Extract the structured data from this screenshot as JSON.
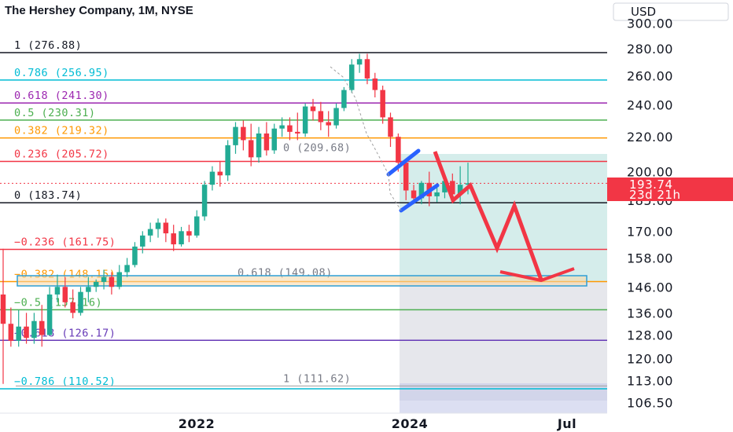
{
  "header": {
    "title": "The Hershey Company, 1M, NYSE",
    "currency": "USD"
  },
  "colors": {
    "up": "#22ab94",
    "down": "#f23645",
    "projection": "#f23645",
    "channel": "#2962ff",
    "target_zone": "#2e9fd6",
    "tp_zone": "#b2dfdb",
    "sl_zone": "#d1d4dc"
  },
  "price_badge": {
    "price": "193.74",
    "countdown": "23d 21h"
  },
  "chart_data": {
    "type": "candlestick",
    "title": "The Hershey Company, 1M, NYSE",
    "y_axis": {
      "scale": "log",
      "ticks": [
        "300.00",
        "280.00",
        "260.00",
        "240.00",
        "220.00",
        "200.00",
        "185.00",
        "170.00",
        "158.00",
        "146.00",
        "136.00",
        "128.00",
        "120.00",
        "113.00",
        "106.50"
      ]
    },
    "x_axis": {
      "ticks": [
        "2022",
        "2024",
        "Jul"
      ]
    },
    "fib_levels_upper": [
      {
        "label": "1 (276.88)",
        "price": 276.88,
        "color": "#131722"
      },
      {
        "label": "0.786 (256.95)",
        "price": 256.95,
        "color": "#00bcd4"
      },
      {
        "label": "0.618 (241.30)",
        "price": 241.3,
        "color": "#9c27b0"
      },
      {
        "label": "0.5 (230.31)",
        "price": 230.31,
        "color": "#4caf50"
      },
      {
        "label": "0.382 (219.32)",
        "price": 219.32,
        "color": "#ff9800"
      },
      {
        "label": "0.236 (205.72)",
        "price": 205.72,
        "color": "#f23645"
      },
      {
        "label": "0 (183.74)",
        "price": 183.74,
        "color": "#131722"
      },
      {
        "label": "−0.236 (161.75)",
        "price": 161.75,
        "color": "#f23645"
      },
      {
        "label": "−0.382 (148.15)",
        "price": 148.15,
        "color": "#ff9800"
      },
      {
        "label": "−0.5 (137.16)",
        "price": 137.16,
        "color": "#4caf50"
      },
      {
        "label": "−0.618 (126.17)",
        "price": 126.17,
        "color": "#673ab7"
      },
      {
        "label": "−0.786 (110.52)",
        "price": 110.52,
        "color": "#00bcd4"
      }
    ],
    "fib_levels_lower": [
      {
        "label": "0 (209.68)",
        "price": 209.68
      },
      {
        "label": "0.618 (149.08)",
        "price": 149.08
      },
      {
        "label": "1 (111.62)",
        "price": 111.62
      }
    ],
    "last_price": 193.74,
    "candles": [
      {
        "o": 143,
        "h": 162,
        "c": 132,
        "l": 112
      },
      {
        "o": 132,
        "h": 138,
        "c": 126,
        "l": 124
      },
      {
        "o": 126,
        "h": 137,
        "c": 131,
        "l": 124
      },
      {
        "o": 131,
        "h": 136,
        "c": 127,
        "l": 125
      },
      {
        "o": 127,
        "h": 136,
        "c": 133,
        "l": 125
      },
      {
        "o": 133,
        "h": 139,
        "c": 128,
        "l": 124
      },
      {
        "o": 128,
        "h": 146,
        "c": 143,
        "l": 128
      },
      {
        "o": 143,
        "h": 151,
        "c": 146,
        "l": 140
      },
      {
        "o": 146,
        "h": 150,
        "c": 140,
        "l": 138
      },
      {
        "o": 140,
        "h": 145,
        "c": 136,
        "l": 134
      },
      {
        "o": 136,
        "h": 146,
        "c": 144,
        "l": 135
      },
      {
        "o": 144,
        "h": 150,
        "c": 146,
        "l": 140
      },
      {
        "o": 146,
        "h": 149,
        "c": 148,
        "l": 144
      },
      {
        "o": 148,
        "h": 153,
        "c": 150,
        "l": 145
      },
      {
        "o": 150,
        "h": 152,
        "c": 146,
        "l": 143
      },
      {
        "o": 146,
        "h": 155,
        "c": 152,
        "l": 145
      },
      {
        "o": 152,
        "h": 158,
        "c": 155,
        "l": 150
      },
      {
        "o": 155,
        "h": 165,
        "c": 163,
        "l": 154
      },
      {
        "o": 163,
        "h": 170,
        "c": 168,
        "l": 160
      },
      {
        "o": 168,
        "h": 174,
        "c": 171,
        "l": 165
      },
      {
        "o": 171,
        "h": 176,
        "c": 174,
        "l": 167
      },
      {
        "o": 174,
        "h": 176,
        "c": 169,
        "l": 165
      },
      {
        "o": 169,
        "h": 173,
        "c": 164,
        "l": 161
      },
      {
        "o": 164,
        "h": 172,
        "c": 170,
        "l": 163
      },
      {
        "o": 170,
        "h": 173,
        "c": 168,
        "l": 165
      },
      {
        "o": 168,
        "h": 180,
        "c": 177,
        "l": 167
      },
      {
        "o": 177,
        "h": 195,
        "c": 193,
        "l": 175
      },
      {
        "o": 193,
        "h": 203,
        "c": 200,
        "l": 190
      },
      {
        "o": 200,
        "h": 206,
        "c": 198,
        "l": 192
      },
      {
        "o": 198,
        "h": 218,
        "c": 215,
        "l": 195
      },
      {
        "o": 215,
        "h": 229,
        "c": 226,
        "l": 210
      },
      {
        "o": 226,
        "h": 230,
        "c": 218,
        "l": 212
      },
      {
        "o": 218,
        "h": 228,
        "c": 208,
        "l": 203
      },
      {
        "o": 208,
        "h": 226,
        "c": 222,
        "l": 205
      },
      {
        "o": 222,
        "h": 229,
        "c": 212,
        "l": 209
      },
      {
        "o": 212,
        "h": 228,
        "c": 225,
        "l": 210
      },
      {
        "o": 225,
        "h": 232,
        "c": 227,
        "l": 220
      },
      {
        "o": 227,
        "h": 232,
        "c": 223,
        "l": 218
      },
      {
        "o": 223,
        "h": 235,
        "c": 222,
        "l": 218
      },
      {
        "o": 222,
        "h": 241,
        "c": 239,
        "l": 220
      },
      {
        "o": 239,
        "h": 244,
        "c": 236,
        "l": 230
      },
      {
        "o": 236,
        "h": 242,
        "c": 229,
        "l": 224
      },
      {
        "o": 229,
        "h": 236,
        "c": 227,
        "l": 220
      },
      {
        "o": 227,
        "h": 241,
        "c": 238,
        "l": 225
      },
      {
        "o": 238,
        "h": 252,
        "c": 250,
        "l": 236
      },
      {
        "o": 250,
        "h": 272,
        "c": 268,
        "l": 248
      },
      {
        "o": 268,
        "h": 276,
        "c": 272,
        "l": 262
      },
      {
        "o": 272,
        "h": 276,
        "c": 258,
        "l": 254
      },
      {
        "o": 258,
        "h": 262,
        "c": 250,
        "l": 245
      },
      {
        "o": 250,
        "h": 253,
        "c": 232,
        "l": 228
      },
      {
        "o": 232,
        "h": 235,
        "c": 220,
        "l": 214
      },
      {
        "o": 220,
        "h": 222,
        "c": 205,
        "l": 200
      },
      {
        "o": 205,
        "h": 207,
        "c": 190,
        "l": 185
      },
      {
        "o": 190,
        "h": 193,
        "c": 186,
        "l": 183
      },
      {
        "o": 186,
        "h": 195,
        "c": 194,
        "l": 183
      },
      {
        "o": 194,
        "h": 200,
        "c": 187,
        "l": 182
      },
      {
        "o": 187,
        "h": 193,
        "c": 189,
        "l": 184
      },
      {
        "o": 189,
        "h": 198,
        "c": 195,
        "l": 186
      },
      {
        "o": 195,
        "h": 199,
        "c": 188,
        "l": 185
      },
      {
        "o": 188,
        "h": 203,
        "c": 193,
        "l": 183
      },
      {
        "o": 193,
        "h": 205,
        "c": 193.74,
        "l": 188
      }
    ]
  }
}
